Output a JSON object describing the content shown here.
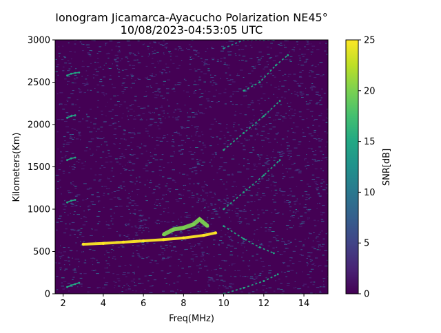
{
  "chart_data": {
    "type": "heatmap",
    "title": "Ionogram Jicamarca-Ayacucho Polarization NE45°",
    "subtitle": "10/08/2023-04:53:05 UTC",
    "xlabel": "Freq(MHz)",
    "ylabel": "Kilometers(Km)",
    "colorbar_label": "SNR[dB]",
    "colormap": "viridis",
    "xlim": [
      1.6,
      15.2
    ],
    "ylim": [
      0,
      3000
    ],
    "clim": [
      0,
      25
    ],
    "xticks": [
      2,
      4,
      6,
      8,
      10,
      12,
      14
    ],
    "yticks": [
      0,
      500,
      1000,
      1500,
      2000,
      2500,
      3000
    ],
    "cticks": [
      0,
      5,
      10,
      15,
      20,
      25
    ],
    "background_snr_db": 1,
    "traces": [
      {
        "name": "main echo",
        "x": [
          3.0,
          4.0,
          5.0,
          6.0,
          7.0,
          8.0,
          9.0,
          9.6
        ],
        "y": [
          585,
          595,
          610,
          625,
          640,
          660,
          690,
          720
        ],
        "snr_db": 25
      },
      {
        "name": "spread echo",
        "x": [
          7.0,
          7.5,
          8.0,
          8.5,
          8.8,
          9.2
        ],
        "y": [
          700,
          760,
          780,
          820,
          880,
          800
        ],
        "snr_db": 20
      },
      {
        "name": "low-frequency multihop",
        "x": [
          2.2,
          2.4,
          2.6,
          2.8
        ],
        "y": [
          80,
          100,
          115,
          130
        ],
        "snr_db": 15
      },
      {
        "name": "low-frequency multihop",
        "x": [
          2.2,
          2.4,
          2.6
        ],
        "y": [
          1080,
          1100,
          1110
        ],
        "snr_db": 15
      },
      {
        "name": "low-frequency multihop",
        "x": [
          2.2,
          2.4,
          2.6
        ],
        "y": [
          1580,
          1600,
          1610
        ],
        "snr_db": 15
      },
      {
        "name": "low-frequency multihop",
        "x": [
          2.2,
          2.4,
          2.6
        ],
        "y": [
          2080,
          2100,
          2110
        ],
        "snr_db": 15
      },
      {
        "name": "low-frequency multihop",
        "x": [
          2.2,
          2.4,
          2.6,
          2.8
        ],
        "y": [
          2580,
          2600,
          2610,
          2615
        ],
        "snr_db": 15
      },
      {
        "name": "oblique trace",
        "x": [
          10.0,
          11.0,
          12.0,
          12.7
        ],
        "y": [
          0,
          70,
          150,
          230
        ],
        "snr_db": 15
      },
      {
        "name": "oblique trace",
        "x": [
          10.0,
          11.0,
          11.8,
          12.5
        ],
        "y": [
          800,
          650,
          550,
          480
        ],
        "snr_db": 15
      },
      {
        "name": "oblique trace",
        "x": [
          10.0,
          11.0,
          12.0,
          12.8
        ],
        "y": [
          1000,
          1200,
          1400,
          1580
        ],
        "snr_db": 15
      },
      {
        "name": "oblique trace",
        "x": [
          10.0,
          11.0,
          12.0,
          12.8
        ],
        "y": [
          1700,
          1900,
          2100,
          2280
        ],
        "snr_db": 15
      },
      {
        "name": "oblique trace",
        "x": [
          10.0,
          11.0,
          12.0,
          12.5
        ],
        "y": [
          2900,
          3000,
          3000,
          3000
        ],
        "snr_db": 12
      },
      {
        "name": "oblique trace",
        "x": [
          11.0,
          11.8,
          12.6,
          13.2
        ],
        "y": [
          2400,
          2500,
          2700,
          2820
        ],
        "snr_db": 15
      }
    ]
  }
}
